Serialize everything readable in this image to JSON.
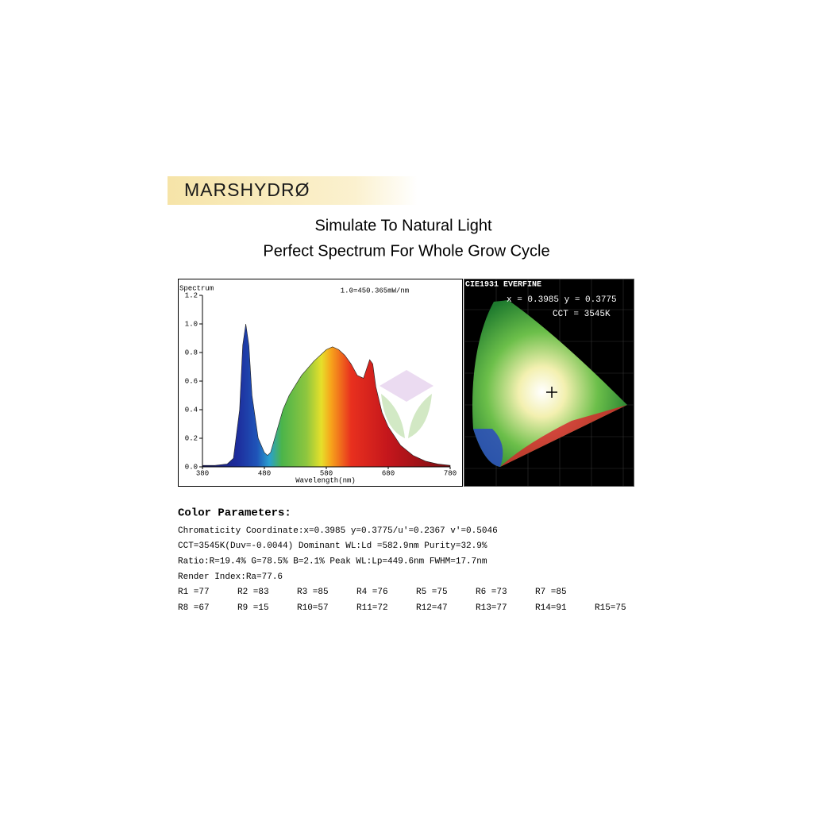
{
  "brand": "MARSHYDRØ",
  "headline": [
    "Simulate To Natural Light",
    "Perfect Spectrum For Whole Grow Cycle"
  ],
  "chart_data": {
    "type": "area",
    "ylabel": "Spectrum",
    "xlabel": "Wavelength(nm)",
    "annotation": "1.0=450.365mW/nm",
    "x": [
      380,
      400,
      420,
      430,
      440,
      445,
      450,
      455,
      460,
      470,
      480,
      485,
      490,
      500,
      510,
      520,
      540,
      560,
      580,
      590,
      600,
      610,
      620,
      630,
      640,
      650,
      655,
      660,
      670,
      680,
      700,
      720,
      740,
      760,
      780
    ],
    "values": [
      0.01,
      0.01,
      0.02,
      0.06,
      0.4,
      0.85,
      1.0,
      0.85,
      0.5,
      0.2,
      0.1,
      0.08,
      0.1,
      0.25,
      0.4,
      0.5,
      0.64,
      0.74,
      0.82,
      0.84,
      0.82,
      0.78,
      0.72,
      0.64,
      0.62,
      0.75,
      0.72,
      0.56,
      0.38,
      0.28,
      0.15,
      0.08,
      0.04,
      0.02,
      0.01
    ],
    "xlim": [
      380,
      780
    ],
    "ylim": [
      0,
      1.2
    ],
    "xticks": [
      380,
      480,
      580,
      680,
      780
    ],
    "yticks": [
      {
        "value": 0,
        "label": "0.0"
      },
      0.2,
      0.4,
      0.6,
      0.8,
      {
        "value": 1,
        "label": "1.0"
      },
      1.2
    ]
  },
  "cie": {
    "title": "CIE1931 EVERFINE",
    "coords": "x = 0.3985 y = 0.3775",
    "cct": "CCT = 3545K"
  },
  "parameters": {
    "heading": "Color Parameters:",
    "lines": [
      "Chromaticity Coordinate:x=0.3985  y=0.3775/u'=0.2367 v'=0.5046",
      "CCT=3545K(Duv=-0.0044) Dominant WL:Ld =582.9nm Purity=32.9%",
      "Ratio:R=19.4% G=78.5% B=2.1%  Peak WL:Lp=449.6nm  FWHM=17.7nm",
      "Render Index:Ra=77.6"
    ],
    "render_rows": [
      [
        "R1 =77",
        "R2 =83",
        "R3 =85",
        "R4 =76",
        "R5 =75",
        "R6 =73",
        "R7 =85"
      ],
      [
        "R8 =67",
        "R9 =15",
        "R10=57",
        "R11=72",
        "R12=47",
        "R13=77",
        "R14=91",
        "R15=75"
      ]
    ]
  }
}
